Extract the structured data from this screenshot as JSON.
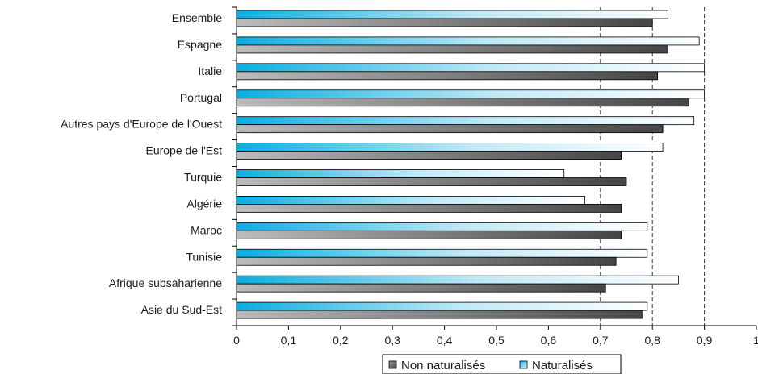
{
  "chart_data": {
    "type": "bar",
    "orientation": "horizontal",
    "categories": [
      "Ensemble",
      "Espagne",
      "Italie",
      "Portugal",
      "Autres pays d'Europe de l'Ouest",
      "Europe de l'Est",
      "Turquie",
      "Algérie",
      "Maroc",
      "Tunisie",
      "Afrique subsaharienne",
      "Asie du Sud-Est"
    ],
    "series": [
      {
        "name": "Naturalisés",
        "values": [
          0.83,
          0.89,
          0.9,
          0.9,
          0.88,
          0.82,
          0.63,
          0.67,
          0.79,
          0.79,
          0.85,
          0.79
        ],
        "style": "gradient",
        "colors": [
          "#0aaee0",
          "#ffffff"
        ]
      },
      {
        "name": "Non naturalisés",
        "values": [
          0.8,
          0.83,
          0.81,
          0.87,
          0.82,
          0.74,
          0.75,
          0.74,
          0.74,
          0.73,
          0.71,
          0.78
        ],
        "style": "gradient",
        "colors": [
          "#b4b4b4",
          "#4a4a4a"
        ]
      }
    ],
    "xlim": [
      0,
      1
    ],
    "xticks": [
      "0",
      "0,1",
      "0,2",
      "0,3",
      "0,4",
      "0,5",
      "0,6",
      "0,7",
      "0,8",
      "0,9",
      "1"
    ],
    "reference_lines": [
      0.7,
      0.8,
      0.9
    ],
    "grid": false,
    "legend_position": "bottom",
    "legend": [
      {
        "label": "Non naturalisés",
        "series": "Non naturalisés"
      },
      {
        "label": "Naturalisés",
        "series": "Naturalisés"
      }
    ],
    "title": "",
    "xlabel": "",
    "ylabel": ""
  }
}
